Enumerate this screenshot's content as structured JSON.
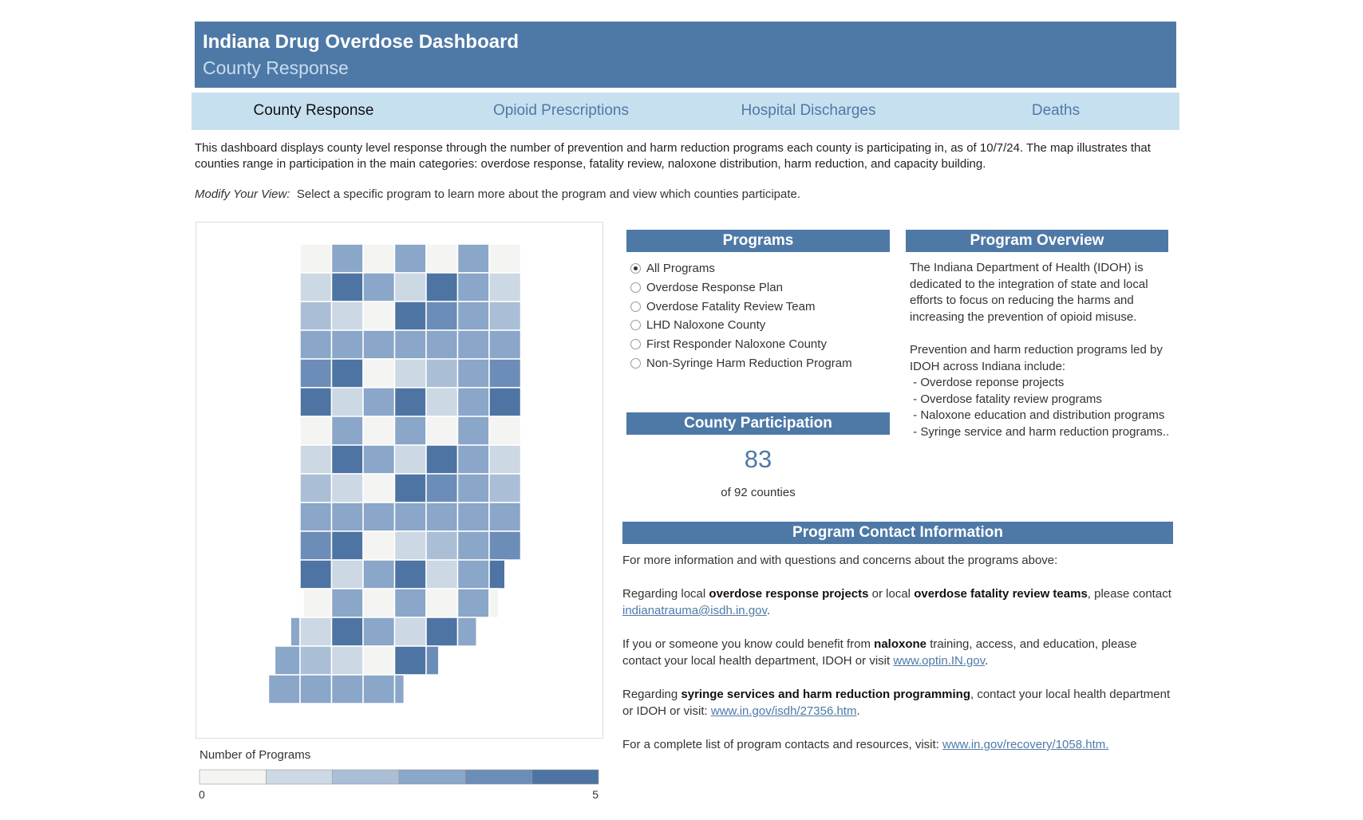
{
  "header": {
    "title": "Indiana Drug Overdose Dashboard",
    "subtitle": "County Response"
  },
  "tabs": [
    "County Response",
    "Opioid Prescriptions",
    "Hospital Discharges",
    "Deaths"
  ],
  "description": "This dashboard displays county level response through the number of prevention and harm reduction programs each county is participating in, as of 10/7/24. The map illustrates that counties range in participation in the main categories: overdose response, fatality review, naloxone distribution, harm reduction, and capacity building.",
  "modify": {
    "label": "Modify Your View:",
    "text": "Select a specific program to learn more about the program and view which counties participate."
  },
  "map_legend": {
    "title": "Number of Programs",
    "min": 0,
    "max": 5,
    "colors": [
      "#f4f4f2",
      "#ccd8e4",
      "#aabed6",
      "#8aa6c8",
      "#6c8db8",
      "#4e74a3"
    ]
  },
  "programs": {
    "title": "Programs",
    "options": [
      {
        "label": "All Programs",
        "selected": true
      },
      {
        "label": "Overdose Response Plan",
        "selected": false
      },
      {
        "label": "Overdose Fatality Review Team",
        "selected": false
      },
      {
        "label": "LHD Naloxone County",
        "selected": false
      },
      {
        "label": "First Responder Naloxone County",
        "selected": false
      },
      {
        "label": "Non-Syringe Harm Reduction Program",
        "selected": false
      }
    ]
  },
  "participation": {
    "title": "County Participation",
    "value": 83,
    "subtext": "of 92 counties"
  },
  "overview": {
    "title": "Program Overview",
    "lines": [
      "The Indiana Department of Health (IDOH) is dedicated to the integration of state and local efforts to focus on reducing the harms and increasing the prevention of opioid misuse.",
      "",
      "Prevention and harm reduction programs led by IDOH across Indiana include:",
      " - Overdose reponse projects",
      " - Overdose fatality review programs",
      " - Naloxone education and distribution programs",
      " - Syringe service and harm reduction programs.."
    ]
  },
  "contact": {
    "title": "Program Contact Information",
    "paragraphs": [
      [
        {
          "text": "For more information and with questions and concerns about the programs above:",
          "style": "plain"
        }
      ],
      [
        {
          "text": "Regarding local ",
          "style": "plain"
        },
        {
          "text": "overdose response projects",
          "style": "bold"
        },
        {
          "text": " or local ",
          "style": "plain"
        },
        {
          "text": "overdose fatality review teams",
          "style": "bold"
        },
        {
          "text": ", please contact ",
          "style": "plain"
        },
        {
          "text": "indianatrauma@isdh.in.gov",
          "style": "link"
        },
        {
          "text": ".",
          "style": "plain"
        }
      ],
      [
        {
          "text": "If you or someone you know could benefit from ",
          "style": "plain"
        },
        {
          "text": "naloxone",
          "style": "bold"
        },
        {
          "text": " training, access, and education, please contact your local health department, IDOH or visit ",
          "style": "plain"
        },
        {
          "text": "www.optin.IN.gov",
          "style": "link"
        },
        {
          "text": ".",
          "style": "plain"
        }
      ],
      [
        {
          "text": "Regarding ",
          "style": "plain"
        },
        {
          "text": "syringe services and harm reduction programming",
          "style": "bold"
        },
        {
          "text": ", contact your local health department or IDOH or visit: ",
          "style": "plain"
        },
        {
          "text": "www.in.gov/isdh/27356.htm",
          "style": "link"
        },
        {
          "text": ".",
          "style": "plain"
        }
      ],
      [
        {
          "text": "For a complete list of program contacts and resources, visit: ",
          "style": "plain"
        },
        {
          "text": "www.in.gov/recovery/1058.htm.",
          "style": "link"
        }
      ]
    ]
  }
}
